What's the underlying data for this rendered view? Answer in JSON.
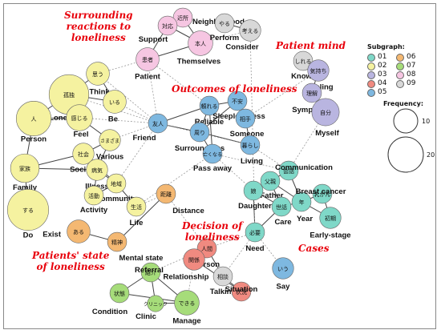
{
  "palette": {
    "01": "#7fd8c8",
    "02": "#f5f2a0",
    "03": "#b9b5e0",
    "04": "#f08a80",
    "05": "#7eb8e0",
    "06": "#f4b872",
    "07": "#a6dc7a",
    "08": "#f6c6e2",
    "09": "#d8d8d8"
  },
  "annotations": [
    {
      "id": "surrounding",
      "lines": [
        "Surrounding",
        "reactions to",
        "loneliness"
      ]
    },
    {
      "id": "patient-mind",
      "lines": [
        "Patient mind"
      ]
    },
    {
      "id": "outcomes",
      "lines": [
        "Outcomes of loneliness"
      ]
    },
    {
      "id": "decision",
      "lines": [
        "Decision of",
        "loneliness"
      ]
    },
    {
      "id": "patients-state",
      "lines": [
        "Patients' state",
        "of loneliness"
      ]
    },
    {
      "id": "cases",
      "lines": [
        "Cases"
      ]
    }
  ],
  "legend": {
    "title": "Subgraph:",
    "items": [
      "01",
      "02",
      "03",
      "04",
      "05",
      "06",
      "07",
      "08",
      "09"
    ]
  },
  "frequency_legend": {
    "title": "Frequency:",
    "values": [
      10,
      20
    ]
  },
  "nodes": [
    {
      "id": "kinjo",
      "jp": "近所",
      "en": "Neighborhood",
      "group": "08",
      "freq": 2
    },
    {
      "id": "taio",
      "jp": "対応",
      "en": "Support",
      "group": "08",
      "freq": 2
    },
    {
      "id": "honnin",
      "jp": "本人",
      "en": "Themselves",
      "group": "08",
      "freq": 5
    },
    {
      "id": "kanja",
      "jp": "患者",
      "en": "Patient",
      "group": "08",
      "freq": 4
    },
    {
      "id": "yaru",
      "jp": "やる",
      "en": "Perform",
      "group": "09",
      "freq": 2
    },
    {
      "id": "kangaeru",
      "jp": "考える",
      "en": "Consider",
      "group": "09",
      "freq": 3
    },
    {
      "id": "omou",
      "jp": "思う",
      "en": "Think",
      "group": "02",
      "freq": 4
    },
    {
      "id": "kodoku",
      "jp": "孤独",
      "en": "Loneliness",
      "group": "02",
      "freq": 20
    },
    {
      "id": "iru",
      "jp": "いる",
      "en": "Be",
      "group": "02",
      "freq": 4
    },
    {
      "id": "hito",
      "jp": "人",
      "en": "Person",
      "group": "02",
      "freq": 14
    },
    {
      "id": "kanjiru",
      "jp": "感じる",
      "en": "Feel",
      "group": "02",
      "freq": 6
    },
    {
      "id": "samazama",
      "jp": "さまざま",
      "en": "Various",
      "group": "02",
      "freq": 3
    },
    {
      "id": "shakai",
      "jp": "社会",
      "en": "Society",
      "group": "02",
      "freq": 3
    },
    {
      "id": "kazoku",
      "jp": "家族",
      "en": "Family",
      "group": "02",
      "freq": 8
    },
    {
      "id": "byoki",
      "jp": "病気",
      "en": "Illness",
      "group": "02",
      "freq": 3
    },
    {
      "id": "chiiki",
      "jp": "地域",
      "en": "Community",
      "group": "02",
      "freq": 2
    },
    {
      "id": "katsudo",
      "jp": "活動",
      "en": "Activity",
      "group": "02",
      "freq": 2
    },
    {
      "id": "seikatsu",
      "jp": "生活",
      "en": "Life",
      "group": "02",
      "freq": 2
    },
    {
      "id": "suru",
      "jp": "する",
      "en": "Do",
      "group": "02",
      "freq": 22
    },
    {
      "id": "shireru",
      "jp": "しれる",
      "en": "Know",
      "group": "09",
      "freq": 2
    },
    {
      "id": "kimochi",
      "jp": "気持ち",
      "en": "Feeling",
      "group": "03",
      "freq": 3
    },
    {
      "id": "rikai",
      "jp": "理解",
      "en": "Sympathy",
      "group": "03",
      "freq": 2
    },
    {
      "id": "jibun",
      "jp": "自分",
      "en": "Myself",
      "group": "03",
      "freq": 7
    },
    {
      "id": "yujin",
      "jp": "友人",
      "en": "Friend",
      "group": "05",
      "freq": 2
    },
    {
      "id": "tayoreru",
      "jp": "頼れる",
      "en": "Reliable",
      "group": "05",
      "freq": 2
    },
    {
      "id": "fuan",
      "jp": "不安",
      "en": "Sleeplessness",
      "group": "05",
      "freq": 2
    },
    {
      "id": "aite",
      "jp": "相手",
      "en": "Someone",
      "group": "05",
      "freq": 2
    },
    {
      "id": "mawari",
      "jp": "周り",
      "en": "Surroundings",
      "group": "05",
      "freq": 2
    },
    {
      "id": "nakunaru",
      "jp": "亡くなる",
      "en": "Pass away",
      "group": "05",
      "freq": 2
    },
    {
      "id": "kurashi",
      "jp": "暮らし",
      "en": "Living",
      "group": "05",
      "freq": 2
    },
    {
      "id": "kaiwa",
      "jp": "会話",
      "en": "Communication",
      "group": "01",
      "freq": 2
    },
    {
      "id": "chichioya",
      "jp": "父親",
      "en": "Father",
      "group": "01",
      "freq": 2
    },
    {
      "id": "musume",
      "jp": "娘",
      "en": "Daughter",
      "group": "01",
      "freq": 2
    },
    {
      "id": "sewa",
      "jp": "世話",
      "en": "Care",
      "group": "01",
      "freq": 2
    },
    {
      "id": "nen",
      "jp": "年",
      "en": "Year",
      "group": "01",
      "freq": 2
    },
    {
      "id": "nyugan",
      "jp": "乳がん",
      "en": "Breast cancer",
      "group": "01",
      "freq": 2
    },
    {
      "id": "shoki",
      "jp": "初期",
      "en": "Early-stage",
      "group": "01",
      "freq": 3
    },
    {
      "id": "hitsuyo",
      "jp": "必要",
      "en": "Need",
      "group": "01",
      "freq": 2
    },
    {
      "id": "iu",
      "jp": "いう",
      "en": "Say",
      "group": "05",
      "freq": 3
    },
    {
      "id": "kyori",
      "jp": "距離",
      "en": "Distance",
      "group": "06",
      "freq": 2
    },
    {
      "id": "aru",
      "jp": "ある",
      "en": "Exist",
      "group": "06",
      "freq": 4
    },
    {
      "id": "seishin",
      "jp": "精神",
      "en": "Mental state",
      "group": "06",
      "freq": 2
    },
    {
      "id": "ningen",
      "jp": "人間",
      "en": "Person",
      "group": "04",
      "freq": 2
    },
    {
      "id": "kankei",
      "jp": "関係",
      "en": "Relationship",
      "group": "04",
      "freq": 3
    },
    {
      "id": "sodan",
      "jp": "相談",
      "en": "Talking",
      "group": "09",
      "freq": 2
    },
    {
      "id": "jokyo",
      "jp": "状況",
      "en": "Situation",
      "group": "04",
      "freq": 2
    },
    {
      "id": "shokai",
      "jp": "紹介",
      "en": "Referral",
      "group": "07",
      "freq": 2
    },
    {
      "id": "jotai",
      "jp": "状態",
      "en": "Condition",
      "group": "07",
      "freq": 2
    },
    {
      "id": "dekiru",
      "jp": "できる",
      "en": "Manage",
      "group": "07",
      "freq": 5
    },
    {
      "id": "clinic",
      "jp": "クリニック",
      "en": "Clinic",
      "group": "07",
      "freq": 1
    }
  ],
  "edges": [
    [
      "kinjo",
      "taio",
      "solid"
    ],
    [
      "kinjo",
      "honnin",
      "solid"
    ],
    [
      "taio",
      "honnin",
      "solid"
    ],
    [
      "honnin",
      "kanja",
      "solid"
    ],
    [
      "taio",
      "kanja",
      "solid"
    ],
    [
      "yaru",
      "kangaeru",
      "solid"
    ],
    [
      "omou",
      "kodoku",
      "solid"
    ],
    [
      "omou",
      "iru",
      "solid"
    ],
    [
      "kodoku",
      "hito",
      "solid"
    ],
    [
      "kodoku",
      "kanjiru",
      "solid"
    ],
    [
      "kodoku",
      "iru",
      "solid"
    ],
    [
      "hito",
      "kanjiru",
      "solid"
    ],
    [
      "kanjiru",
      "samazama",
      "solid"
    ],
    [
      "hito",
      "kazoku",
      "solid"
    ],
    [
      "kazoku",
      "shakai",
      "solid"
    ],
    [
      "shakai",
      "byoki",
      "solid"
    ],
    [
      "samazama",
      "shakai",
      "solid"
    ],
    [
      "samazama",
      "byoki",
      "solid"
    ],
    [
      "byoki",
      "chiiki",
      "solid"
    ],
    [
      "kazoku",
      "suru",
      "solid"
    ],
    [
      "shakai",
      "chiiki",
      "solid"
    ],
    [
      "byoki",
      "katsudo",
      "solid"
    ],
    [
      "chiiki",
      "seikatsu",
      "solid"
    ],
    [
      "katsudo",
      "chiiki",
      "solid"
    ],
    [
      "kazoku",
      "byoki",
      "solid"
    ],
    [
      "shireru",
      "kimochi",
      "solid"
    ],
    [
      "kimochi",
      "rikai",
      "solid"
    ],
    [
      "rikai",
      "jibun",
      "solid"
    ],
    [
      "yujin",
      "tayoreru",
      "solid"
    ],
    [
      "yujin",
      "mawari",
      "solid"
    ],
    [
      "tayoreru",
      "mawari",
      "solid"
    ],
    [
      "tayoreru",
      "fuan",
      "solid"
    ],
    [
      "fuan",
      "aite",
      "solid"
    ],
    [
      "mawari",
      "nakunaru",
      "solid"
    ],
    [
      "mawari",
      "kurashi",
      "solid"
    ],
    [
      "aite",
      "kurashi",
      "solid"
    ],
    [
      "tayoreru",
      "nakunaru",
      "solid"
    ],
    [
      "fuan",
      "mawari",
      "solid"
    ],
    [
      "kaiwa",
      "chichioya",
      "solid"
    ],
    [
      "chichioya",
      "musume",
      "solid"
    ],
    [
      "chichioya",
      "sewa",
      "solid"
    ],
    [
      "musume",
      "sewa",
      "solid"
    ],
    [
      "sewa",
      "nen",
      "solid"
    ],
    [
      "chichioya",
      "nen",
      "solid"
    ],
    [
      "nen",
      "nyugan",
      "solid"
    ],
    [
      "nen",
      "shoki",
      "solid"
    ],
    [
      "nyugan",
      "shoki",
      "solid"
    ],
    [
      "musume",
      "hitsuyo",
      "solid"
    ],
    [
      "sewa",
      "hitsuyo",
      "solid"
    ],
    [
      "kaiwa",
      "musume",
      "solid"
    ],
    [
      "kaiwa",
      "nen",
      "solid"
    ],
    [
      "aru",
      "seishin",
      "solid"
    ],
    [
      "kyori",
      "seishin",
      "solid"
    ],
    [
      "ningen",
      "kankei",
      "solid"
    ],
    [
      "ningen",
      "sodan",
      "solid"
    ],
    [
      "kankei",
      "jokyo",
      "solid"
    ],
    [
      "sodan",
      "jokyo",
      "solid"
    ],
    [
      "shokai",
      "jotai",
      "solid"
    ],
    [
      "shokai",
      "dekiru",
      "solid"
    ],
    [
      "jotai",
      "dekiru",
      "solid"
    ],
    [
      "clinic",
      "dekiru",
      "solid"
    ],
    [
      "shokai",
      "clinic",
      "solid"
    ],
    [
      "kanja",
      "omou",
      "dash"
    ],
    [
      "kanja",
      "yujin",
      "dash"
    ],
    [
      "honnin",
      "kangaeru",
      "dash"
    ],
    [
      "iru",
      "yujin",
      "dash"
    ],
    [
      "kanjiru",
      "yujin",
      "dash"
    ],
    [
      "kodoku",
      "yujin",
      "dash"
    ],
    [
      "samazama",
      "yujin",
      "dash"
    ],
    [
      "yujin",
      "kurashi",
      "dash"
    ],
    [
      "nakunaru",
      "kaiwa",
      "dash"
    ],
    [
      "nakunaru",
      "musume",
      "dash"
    ],
    [
      "kurashi",
      "kaiwa",
      "dash"
    ],
    [
      "jibun",
      "kaiwa",
      "dash"
    ],
    [
      "kimochi",
      "aite",
      "dash"
    ],
    [
      "tayoreru",
      "kanja",
      "dash"
    ],
    [
      "hitsuyo",
      "ningen",
      "dash"
    ],
    [
      "hitsuyo",
      "iu",
      "dash"
    ],
    [
      "hitsuyo",
      "sodan",
      "dash"
    ],
    [
      "seikatsu",
      "kyori",
      "dash"
    ],
    [
      "seikatsu",
      "nakunaru",
      "dash"
    ],
    [
      "kyori",
      "ningen",
      "dash"
    ],
    [
      "hitsuyo",
      "kangaeru",
      "dash"
    ],
    [
      "kankei",
      "dekiru",
      "dash"
    ],
    [
      "ningen",
      "shokai",
      "dash"
    ],
    [
      "chiiki",
      "yujin",
      "dash"
    ],
    [
      "omou",
      "yujin",
      "dash"
    ]
  ]
}
